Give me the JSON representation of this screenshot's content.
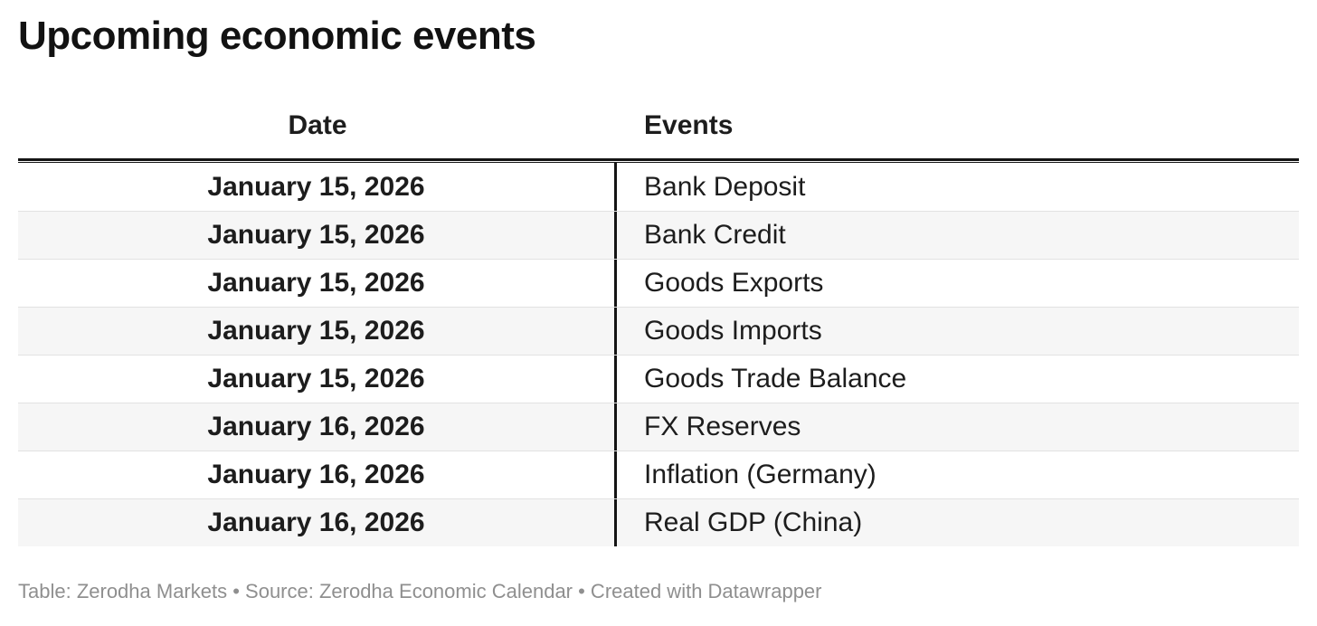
{
  "chart_data": {
    "type": "table",
    "title": "Upcoming economic events",
    "columns": [
      "Date",
      "Events"
    ],
    "rows": [
      [
        "January 15, 2026",
        "Bank Deposit"
      ],
      [
        "January 15, 2026",
        "Bank Credit"
      ],
      [
        "January 15, 2026",
        "Goods Exports"
      ],
      [
        "January 15, 2026",
        "Goods Imports"
      ],
      [
        "January 15, 2026",
        "Goods Trade Balance"
      ],
      [
        "January 16, 2026",
        "FX Reserves"
      ],
      [
        "January 16, 2026",
        "Inflation (Germany)"
      ],
      [
        "January 16, 2026",
        "Real GDP (China)"
      ]
    ],
    "attribution": "Table: Zerodha Markets • Source: Zerodha Economic Calendar • Created with Datawrapper",
    "layout_hints": {
      "date_column_align": "center",
      "events_column_align": "left",
      "zebra_striping": true
    }
  },
  "colors": {
    "background": "#ffffff",
    "text": "#1d1d1d",
    "rule": "#141414",
    "row_alt": "#f6f6f6",
    "row_border": "#e2e2e2",
    "footer_text": "#8f8f8f"
  }
}
